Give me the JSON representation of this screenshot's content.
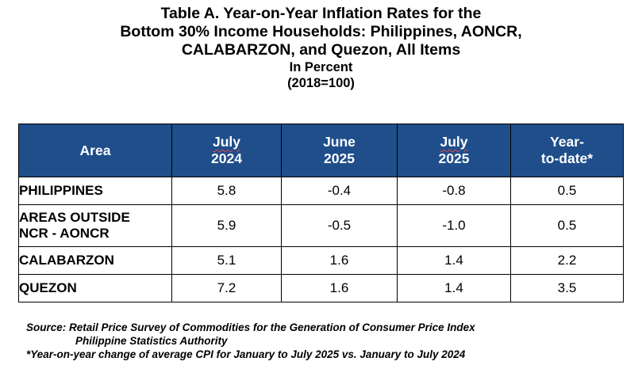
{
  "title": {
    "line1": "Table A. Year-on-Year Inflation Rates for the",
    "line2": "Bottom 30% Income Households: Philippines, AONCR,",
    "line3": "CALABARZON, and Quezon, All Items",
    "unit": "In Percent",
    "base": "(2018=100)"
  },
  "table": {
    "headers": {
      "area": "Area",
      "col1_month": "July",
      "col1_year": "2024",
      "col2_month": "June",
      "col2_year": "2025",
      "col3_month": "July",
      "col3_year": "2025",
      "col4_line1": "Year-",
      "col4_line2": "to-date*"
    },
    "rows": [
      {
        "area_line1": "PHILIPPINES",
        "area_line2": "",
        "jul2024": "5.8",
        "jun2025": "-0.4",
        "jul2025": "-0.8",
        "ytd": "0.5"
      },
      {
        "area_line1": "AREAS OUTSIDE",
        "area_line2": "NCR - AONCR",
        "jul2024": "5.9",
        "jun2025": "-0.5",
        "jul2025": "-1.0",
        "ytd": "0.5"
      },
      {
        "area_line1": "CALABARZON",
        "area_line2": "",
        "jul2024": "5.1",
        "jun2025": "1.6",
        "jul2025": "1.4",
        "ytd": "2.2"
      },
      {
        "area_line1": "QUEZON",
        "area_line2": "",
        "jul2024": "7.2",
        "jun2025": "1.6",
        "jul2025": "1.4",
        "ytd": "3.5"
      }
    ]
  },
  "footnotes": {
    "source": "Source: Retail Price Survey of Commodities for the Generation of Consumer Price Index",
    "agency": "Philippine Statistics Authority",
    "note": "*Year-on-year change of average CPI for January to July 2025 vs. January to July 2024"
  },
  "colors": {
    "header_background": "#1f4e8b",
    "header_text": "#ffffff",
    "border": "#000000"
  }
}
